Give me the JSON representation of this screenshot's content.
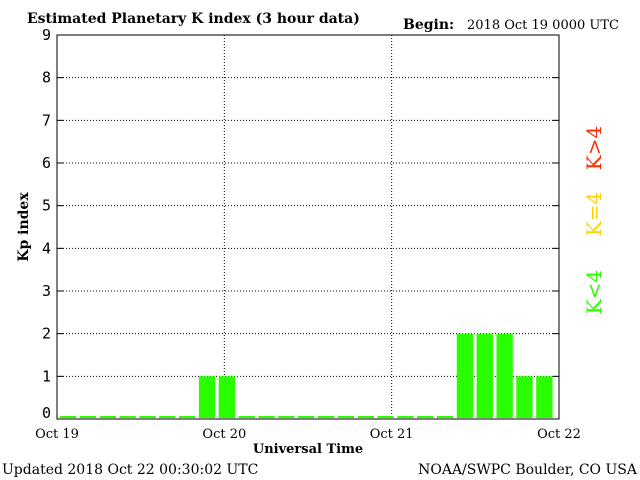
{
  "header": {
    "title": "Estimated Planetary K index (3 hour data)",
    "begin_label": "Begin:",
    "begin_value": "2018 Oct 19 0000 UTC"
  },
  "footer": {
    "updated": "Updated 2018 Oct 22 00:30:02 UTC",
    "source": "NOAA/SWPC Boulder, CO USA"
  },
  "legend": {
    "high": {
      "label": "K>4",
      "color": "#ff2a00"
    },
    "mid": {
      "label": "K=4",
      "color": "#ffd200"
    },
    "low": {
      "label": "K<4",
      "color": "#2aff00"
    }
  },
  "chart_data": {
    "type": "bar",
    "xlabel": "Universal Time",
    "ylabel": "Kp index",
    "ylim": [
      0,
      9
    ],
    "yticks": [
      0,
      1,
      2,
      3,
      4,
      5,
      6,
      7,
      8,
      9
    ],
    "xticks": [
      "Oct 19",
      "Oct 20",
      "Oct 21",
      "Oct 22"
    ],
    "grid": true,
    "bar_color": "#2aff00",
    "values": [
      0.07,
      0.07,
      0.07,
      0.07,
      0.07,
      0.07,
      0.07,
      1,
      1,
      0.07,
      0.07,
      0.07,
      0.07,
      0.07,
      0.07,
      0.07,
      0.07,
      0.07,
      0.07,
      0.07,
      2,
      2,
      2,
      1,
      1
    ]
  }
}
